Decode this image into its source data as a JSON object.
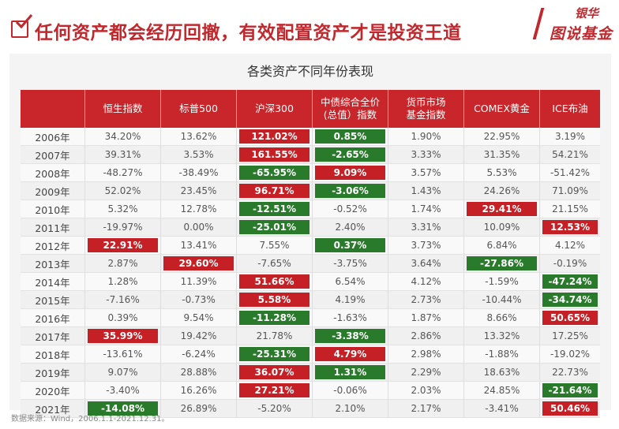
{
  "header": {
    "headline": "任何资产都会经历回撤，有效配置资产才是投资王道",
    "logo_top": "银华",
    "logo_bottom": "图说基金"
  },
  "card": {
    "title": "各类资产不同年份表现"
  },
  "colors": {
    "accent": "#c9262b",
    "best": "#c42025",
    "worst": "#2a7a2c"
  },
  "table": {
    "columns": [
      "恒生指数",
      "标普500",
      "沪深300",
      "中债综合全价\n(总值）指数",
      "货币市场\n基金指数",
      "COMEX黄金",
      "ICE布油"
    ],
    "rows": [
      {
        "year": "2006年",
        "cells": [
          "34.20%",
          "13.62%",
          "121.02%",
          "0.85%",
          "1.90%",
          "22.95%",
          "3.19%"
        ],
        "hl": {
          "2": "red",
          "3": "green"
        }
      },
      {
        "year": "2007年",
        "cells": [
          "39.31%",
          "3.53%",
          "161.55%",
          "-2.65%",
          "3.33%",
          "31.35%",
          "54.21%"
        ],
        "hl": {
          "2": "red",
          "3": "green"
        }
      },
      {
        "year": "2008年",
        "cells": [
          "-48.27%",
          "-38.49%",
          "-65.95%",
          "9.09%",
          "3.57%",
          "5.53%",
          "-51.42%"
        ],
        "hl": {
          "2": "green",
          "3": "red"
        }
      },
      {
        "year": "2009年",
        "cells": [
          "52.02%",
          "23.45%",
          "96.71%",
          "-3.06%",
          "1.43%",
          "24.26%",
          "71.09%"
        ],
        "hl": {
          "2": "red",
          "3": "green"
        }
      },
      {
        "year": "2010年",
        "cells": [
          "5.32%",
          "12.78%",
          "-12.51%",
          "-0.52%",
          "1.74%",
          "29.41%",
          "21.15%"
        ],
        "hl": {
          "2": "green",
          "5": "red"
        }
      },
      {
        "year": "2011年",
        "cells": [
          "-19.97%",
          "0.00%",
          "-25.01%",
          "2.40%",
          "3.31%",
          "10.09%",
          "12.53%"
        ],
        "hl": {
          "2": "green",
          "6": "red"
        }
      },
      {
        "year": "2012年",
        "cells": [
          "22.91%",
          "13.41%",
          "7.55%",
          "0.37%",
          "3.73%",
          "6.84%",
          "4.12%"
        ],
        "hl": {
          "0": "red",
          "3": "green"
        }
      },
      {
        "year": "2013年",
        "cells": [
          "2.87%",
          "29.60%",
          "-7.65%",
          "-3.75%",
          "3.64%",
          "-27.86%",
          "-0.19%"
        ],
        "hl": {
          "1": "red",
          "5": "green"
        }
      },
      {
        "year": "2014年",
        "cells": [
          "1.28%",
          "11.39%",
          "51.66%",
          "6.54%",
          "4.12%",
          "-1.59%",
          "-47.24%"
        ],
        "hl": {
          "2": "red",
          "6": "green"
        }
      },
      {
        "year": "2015年",
        "cells": [
          "-7.16%",
          "-0.73%",
          "5.58%",
          "4.19%",
          "2.73%",
          "-10.44%",
          "-34.74%"
        ],
        "hl": {
          "2": "red",
          "6": "green"
        }
      },
      {
        "year": "2016年",
        "cells": [
          "0.39%",
          "9.54%",
          "-11.28%",
          "-1.63%",
          "1.87%",
          "8.66%",
          "50.65%"
        ],
        "hl": {
          "2": "green",
          "6": "red"
        }
      },
      {
        "year": "2017年",
        "cells": [
          "35.99%",
          "19.42%",
          "21.78%",
          "-3.38%",
          "2.86%",
          "13.32%",
          "17.25%"
        ],
        "hl": {
          "0": "red",
          "3": "green"
        }
      },
      {
        "year": "2018年",
        "cells": [
          "-13.61%",
          "-6.24%",
          "-25.31%",
          "4.79%",
          "2.98%",
          "-1.88%",
          "-19.02%"
        ],
        "hl": {
          "2": "green",
          "3": "red"
        }
      },
      {
        "year": "2019年",
        "cells": [
          "9.07%",
          "28.88%",
          "36.07%",
          "1.31%",
          "2.29%",
          "18.63%",
          "22.73%"
        ],
        "hl": {
          "2": "red",
          "3": "green"
        }
      },
      {
        "year": "2020年",
        "cells": [
          "-3.40%",
          "16.26%",
          "27.21%",
          "-0.06%",
          "2.03%",
          "24.85%",
          "-21.64%"
        ],
        "hl": {
          "2": "red",
          "6": "green"
        }
      },
      {
        "year": "2021年",
        "cells": [
          "-14.08%",
          "26.89%",
          "-5.20%",
          "2.10%",
          "2.17%",
          "-3.41%",
          "50.46%"
        ],
        "hl": {
          "0": "green",
          "6": "red"
        }
      }
    ]
  },
  "footer": {
    "source": "数据来源：Wind，2006.1.1-2021.12.31。"
  }
}
